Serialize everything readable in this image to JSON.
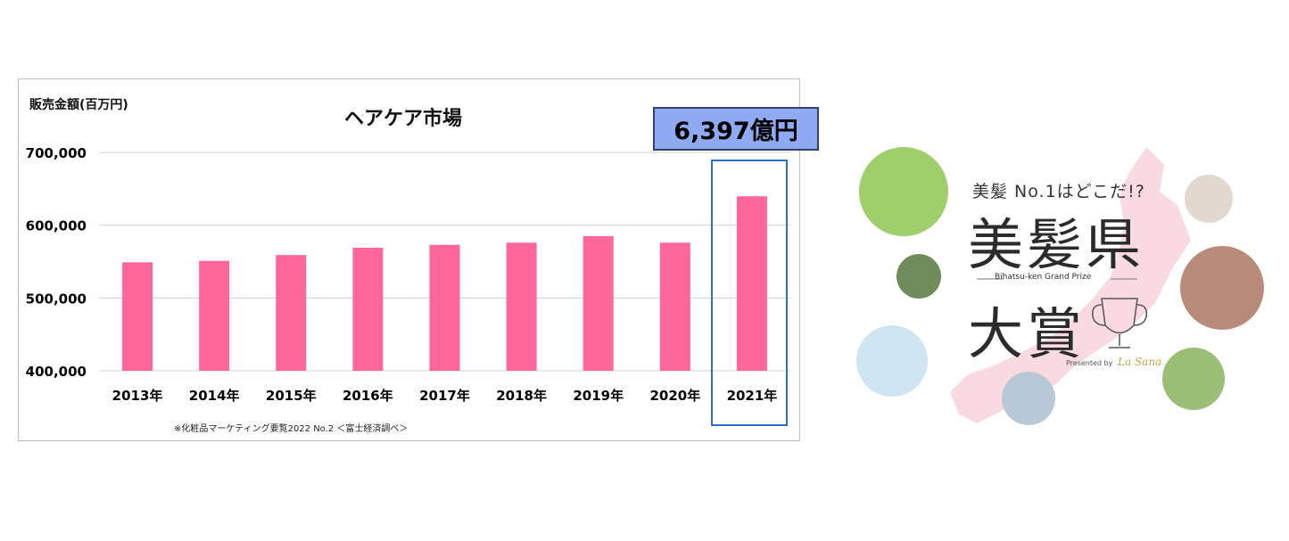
{
  "chart_data": {
    "type": "bar",
    "title": "ヘアケア市場",
    "ylabel": "販売金額(百万円)",
    "categories": [
      "2013年",
      "2014年",
      "2015年",
      "2016年",
      "2017年",
      "2018年",
      "2019年",
      "2020年",
      "2021年"
    ],
    "values": [
      549000,
      551000,
      559000,
      569000,
      573000,
      576000,
      585000,
      576000,
      639700
    ],
    "ylim": [
      400000,
      700000
    ],
    "yticks": [
      700000,
      600000,
      500000,
      400000
    ],
    "ytick_labels": [
      "700,000",
      "600,000",
      "500,000",
      "400,000"
    ],
    "bar_color": "#ff6699",
    "grid": true,
    "highlight_category": "2021年",
    "callout": "6,397億円",
    "source_note": "※化粧品マーケティング要覧2022 No.2 ＜富士経済調べ＞"
  },
  "promo": {
    "tagline": "美髪 No.1はどこだ!?",
    "title_line1": "美髪県",
    "subtitle": "Bihatsu-ken Grand Prize",
    "title_line2": "大賞",
    "presented": "Presented by",
    "brand": "La Sana"
  }
}
